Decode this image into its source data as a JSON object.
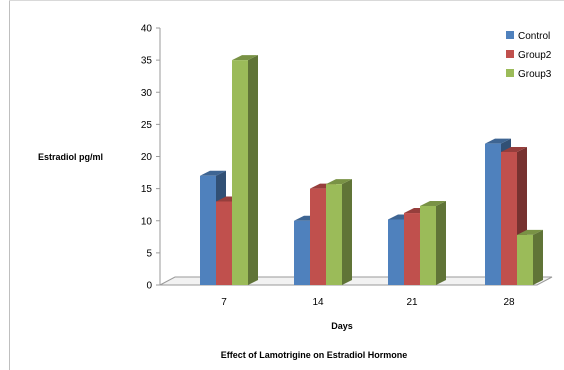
{
  "chart_data": {
    "type": "bar",
    "title": "Effect of Lamotrigine on Estradiol Hormone",
    "xlabel": "Days",
    "ylabel": "Estradiol pg/ml",
    "categories": [
      "7",
      "14",
      "21",
      "28"
    ],
    "ylim": [
      0,
      40
    ],
    "yticks": [
      0,
      5,
      10,
      15,
      20,
      25,
      30,
      35,
      40
    ],
    "grid": false,
    "legend_position": "right",
    "series": [
      {
        "name": "Control",
        "values": [
          17,
          10,
          10.2,
          22
        ],
        "color": "#4F81BD"
      },
      {
        "name": "Group2",
        "values": [
          13,
          15,
          11.2,
          20.7
        ],
        "color": "#C0504D"
      },
      {
        "name": "Group3",
        "values": [
          35,
          15.7,
          12.3,
          7.8
        ],
        "color": "#9BBB59"
      }
    ],
    "style": "3d-clustered-column"
  }
}
